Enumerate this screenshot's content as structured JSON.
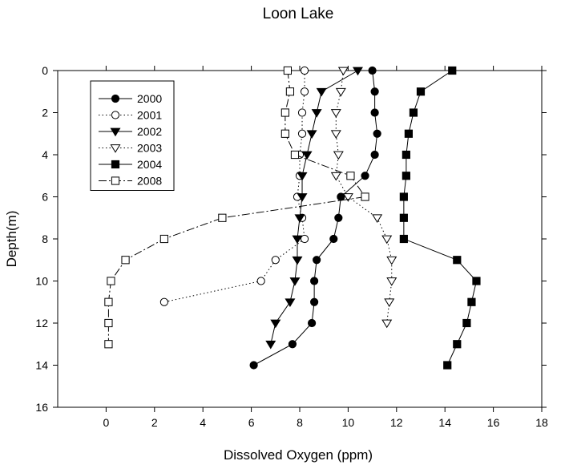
{
  "chart_data": {
    "type": "line",
    "title": "Loon Lake",
    "xlabel": "Dissolved Oxygen (ppm)",
    "ylabel": "Depth(m)",
    "xlim": [
      -2,
      18
    ],
    "ylim": [
      0,
      16
    ],
    "y_inverted": true,
    "x_ticks": [
      0,
      2,
      4,
      6,
      8,
      10,
      12,
      14,
      16,
      18
    ],
    "y_ticks": [
      0,
      2,
      4,
      6,
      8,
      10,
      12,
      14,
      16
    ],
    "grid": false,
    "legend_position": "top-left",
    "series": [
      {
        "name": "2000",
        "marker": "circle",
        "filled": true,
        "line_style": "solid",
        "points": [
          [
            11.0,
            0
          ],
          [
            11.1,
            1
          ],
          [
            11.1,
            2
          ],
          [
            11.2,
            3
          ],
          [
            11.1,
            4
          ],
          [
            10.7,
            5
          ],
          [
            9.7,
            6
          ],
          [
            9.6,
            7
          ],
          [
            9.4,
            8
          ],
          [
            8.7,
            9
          ],
          [
            8.6,
            10
          ],
          [
            8.6,
            11
          ],
          [
            8.5,
            12
          ],
          [
            7.7,
            13
          ],
          [
            6.1,
            14
          ]
        ]
      },
      {
        "name": "2001",
        "marker": "circle",
        "filled": false,
        "line_style": "dotted",
        "points": [
          [
            8.2,
            0
          ],
          [
            8.2,
            1
          ],
          [
            8.1,
            2
          ],
          [
            8.1,
            3
          ],
          [
            8.0,
            4
          ],
          [
            8.0,
            5
          ],
          [
            7.9,
            6
          ],
          [
            8.1,
            7
          ],
          [
            8.2,
            8
          ],
          [
            7.0,
            9
          ],
          [
            6.4,
            10
          ],
          [
            2.4,
            11
          ]
        ]
      },
      {
        "name": "2002",
        "marker": "triangle-down",
        "filled": true,
        "line_style": "solid",
        "points": [
          [
            10.4,
            0
          ],
          [
            8.9,
            1
          ],
          [
            8.7,
            2
          ],
          [
            8.5,
            3
          ],
          [
            8.3,
            4
          ],
          [
            8.1,
            5
          ],
          [
            8.1,
            6
          ],
          [
            8.0,
            7
          ],
          [
            7.9,
            8
          ],
          [
            7.9,
            9
          ],
          [
            7.8,
            10
          ],
          [
            7.6,
            11
          ],
          [
            7.0,
            12
          ],
          [
            6.8,
            13
          ]
        ]
      },
      {
        "name": "2003",
        "marker": "triangle-down",
        "filled": false,
        "line_style": "dotted",
        "points": [
          [
            9.8,
            0
          ],
          [
            9.7,
            1
          ],
          [
            9.5,
            2
          ],
          [
            9.5,
            3
          ],
          [
            9.6,
            4
          ],
          [
            9.5,
            5
          ],
          [
            10.0,
            6
          ],
          [
            11.2,
            7
          ],
          [
            11.6,
            8
          ],
          [
            11.8,
            9
          ],
          [
            11.8,
            10
          ],
          [
            11.7,
            11
          ],
          [
            11.6,
            12
          ]
        ]
      },
      {
        "name": "2004",
        "marker": "square",
        "filled": true,
        "line_style": "solid",
        "points": [
          [
            14.3,
            0
          ],
          [
            13.0,
            1
          ],
          [
            12.7,
            2
          ],
          [
            12.5,
            3
          ],
          [
            12.4,
            4
          ],
          [
            12.4,
            5
          ],
          [
            12.3,
            6
          ],
          [
            12.3,
            7
          ],
          [
            12.3,
            8
          ],
          [
            14.5,
            9
          ],
          [
            15.3,
            10
          ],
          [
            15.1,
            11
          ],
          [
            14.9,
            12
          ],
          [
            14.5,
            13
          ],
          [
            14.1,
            14
          ]
        ]
      },
      {
        "name": "2008",
        "marker": "square",
        "filled": false,
        "line_style": "dash-dot",
        "points": [
          [
            7.5,
            0
          ],
          [
            7.6,
            1
          ],
          [
            7.4,
            2
          ],
          [
            7.4,
            3
          ],
          [
            7.8,
            4
          ],
          [
            10.1,
            5
          ],
          [
            10.7,
            6
          ],
          [
            4.8,
            7
          ],
          [
            2.4,
            8
          ],
          [
            0.8,
            9
          ],
          [
            0.2,
            10
          ],
          [
            0.1,
            11
          ],
          [
            0.1,
            12
          ],
          [
            0.1,
            13
          ]
        ]
      }
    ]
  }
}
